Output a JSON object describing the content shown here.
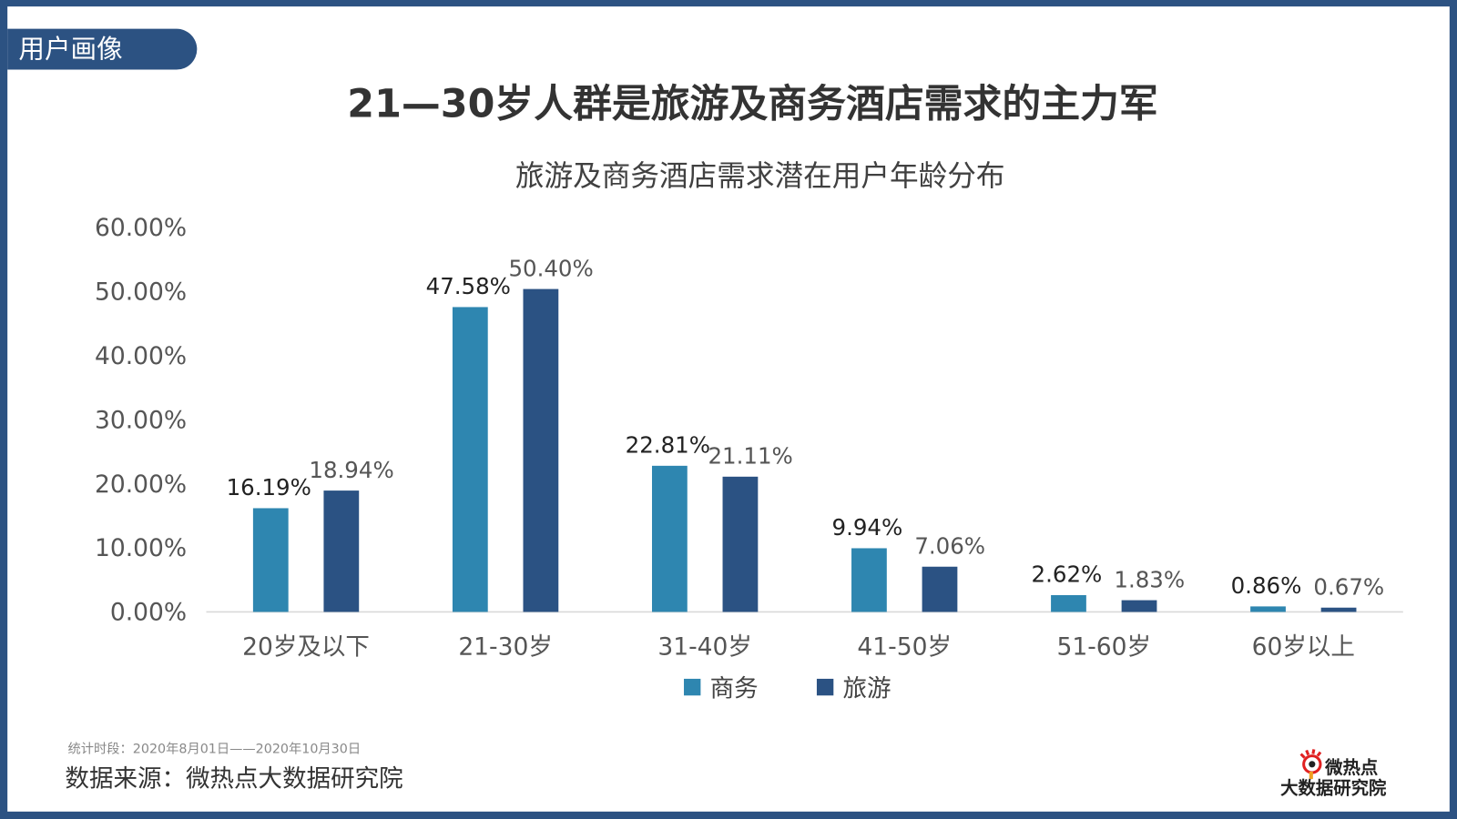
{
  "section_tag": "用户画像",
  "headline": "21—30岁人群是旅游及商务酒店需求的主力军",
  "footer": {
    "period": "统计时段：2020年8月01日——2020年10月30日",
    "source": "数据来源：微热点大数据研究院"
  },
  "logo": {
    "line1": "微热点",
    "line2": "大数据研究院"
  },
  "colors": {
    "frame": "#2C5282",
    "business": "#2E86B0",
    "travel": "#2B5283"
  },
  "chart_data": {
    "type": "bar",
    "title": "旅游及商务酒店需求潜在用户年龄分布",
    "categories": [
      "20岁及以下",
      "21-30岁",
      "31-40岁",
      "41-50岁",
      "51-60岁",
      "60岁以上"
    ],
    "series": [
      {
        "name": "商务",
        "values": [
          16.19,
          47.58,
          22.81,
          9.94,
          2.62,
          0.86
        ],
        "labels": [
          "16.19%",
          "47.58%",
          "22.81%",
          "9.94%",
          "2.62%",
          "0.86%"
        ]
      },
      {
        "name": "旅游",
        "values": [
          18.94,
          50.4,
          21.11,
          7.06,
          1.83,
          0.67
        ],
        "labels": [
          "18.94%",
          "50.40%",
          "21.11%",
          "7.06%",
          "1.83%",
          "0.67%"
        ]
      }
    ],
    "ylim": [
      0,
      60
    ],
    "yticks": [
      "0.00%",
      "10.00%",
      "20.00%",
      "30.00%",
      "40.00%",
      "50.00%",
      "60.00%"
    ],
    "grid": false,
    "legend": "bottom"
  }
}
